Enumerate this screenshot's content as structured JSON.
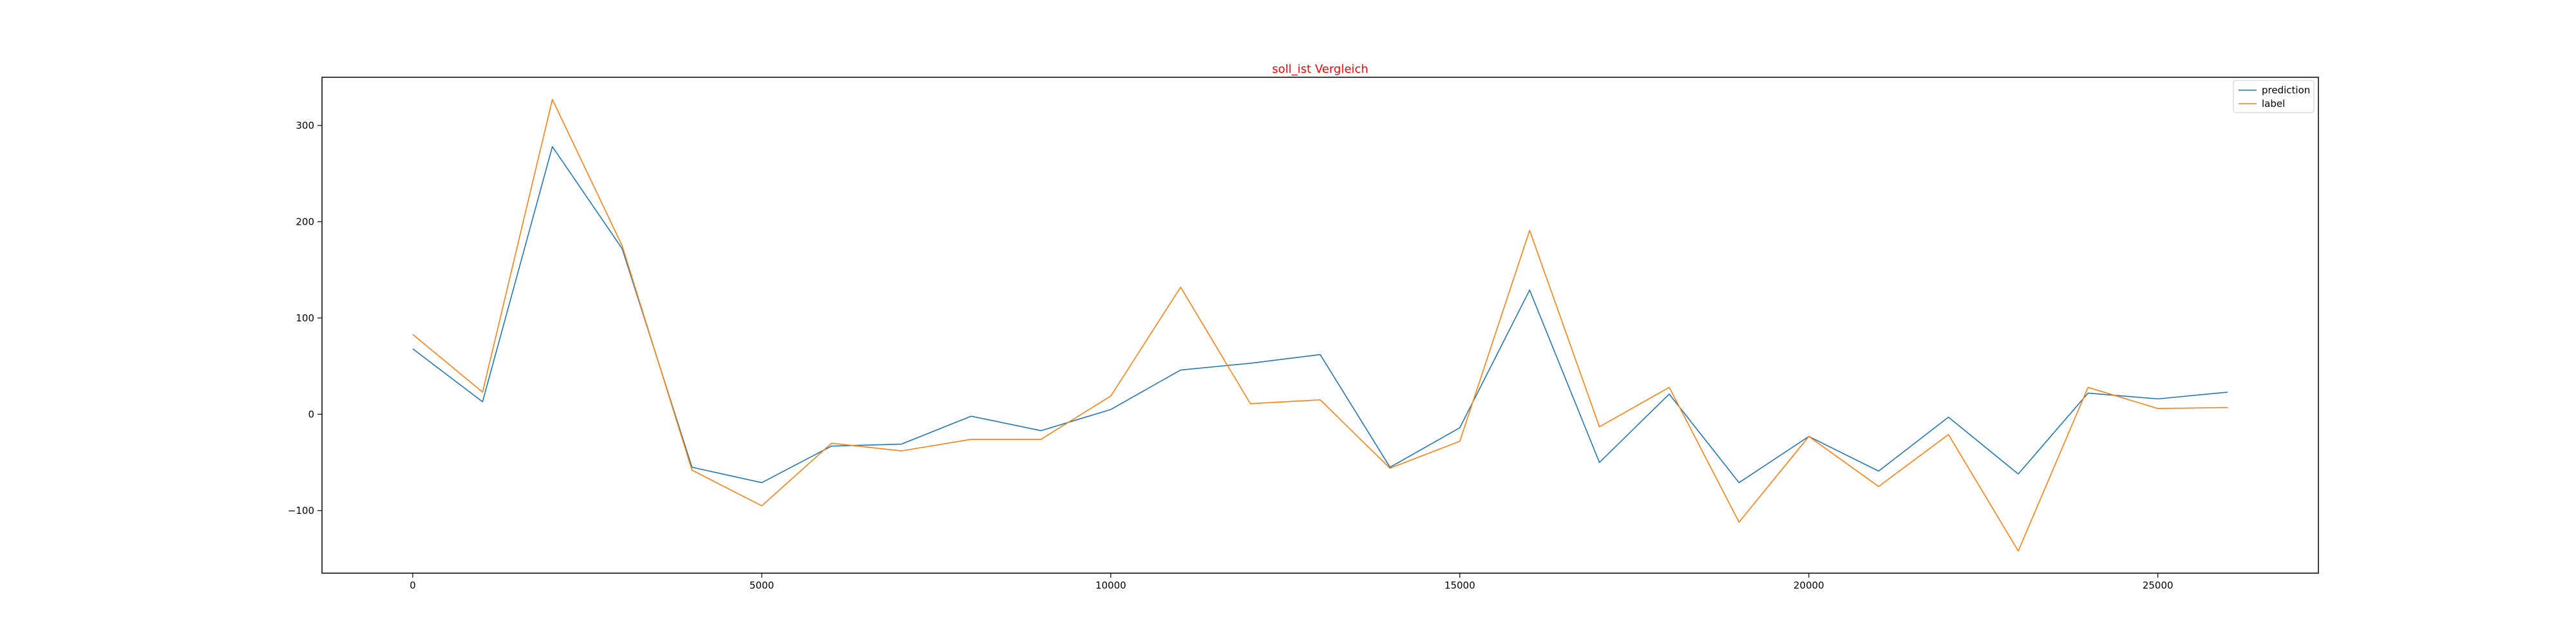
{
  "chart_data": {
    "type": "line",
    "title": "soll_ist Vergleich",
    "title_color": "#ff0000",
    "xlabel": "",
    "ylabel": "",
    "xlim": [
      -1300,
      27300
    ],
    "ylim": [
      -165,
      350
    ],
    "x_ticks": [
      0,
      5000,
      10000,
      15000,
      20000,
      25000
    ],
    "y_ticks": [
      -100,
      0,
      100,
      200,
      300
    ],
    "grid": false,
    "legend_position": "top-right",
    "x": [
      0,
      1000,
      2000,
      3000,
      4000,
      5000,
      6000,
      7000,
      8000,
      9000,
      10000,
      11000,
      12000,
      13000,
      14000,
      15000,
      16000,
      17000,
      18000,
      19000,
      20000,
      21000,
      22000,
      23000,
      24000,
      25000,
      26000
    ],
    "series": [
      {
        "name": "prediction",
        "color": "#1f77b4",
        "values": [
          68,
          13,
          278,
          172,
          -55,
          -71,
          -33,
          -31,
          -2,
          -17,
          5,
          46,
          53,
          62,
          -55,
          -14,
          129,
          -50,
          21,
          -71,
          -23,
          -59,
          -3,
          -62,
          22,
          16,
          23
        ]
      },
      {
        "name": "label",
        "color": "#ff7f0e",
        "values": [
          83,
          23,
          327,
          175,
          -58,
          -95,
          -30,
          -38,
          -26,
          -26,
          19,
          132,
          11,
          15,
          -56,
          -28,
          191,
          -13,
          28,
          -112,
          -23,
          -75,
          -21,
          -142,
          28,
          6,
          7
        ]
      }
    ]
  }
}
